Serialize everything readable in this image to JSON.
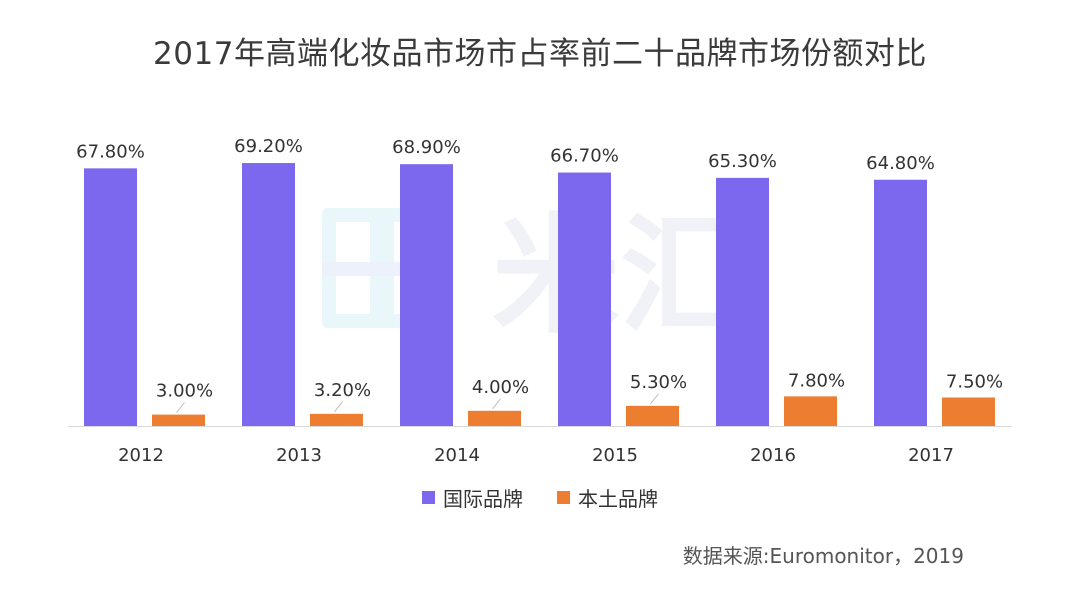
{
  "chart_data": {
    "type": "bar",
    "title": "2017年高端化妆品市场市占率前二十品牌市场份额对比",
    "categories": [
      "2012",
      "2013",
      "2014",
      "2015",
      "2016",
      "2017"
    ],
    "series": [
      {
        "name": "国际品牌",
        "color": "#7B68EE",
        "values": [
          67.8,
          69.2,
          68.9,
          66.7,
          65.3,
          64.8
        ],
        "labels": [
          "67.80%",
          "69.20%",
          "68.90%",
          "66.70%",
          "65.30%",
          "64.80%"
        ]
      },
      {
        "name": "本土品牌",
        "color": "#ED7D31",
        "values": [
          3.0,
          3.2,
          4.0,
          5.3,
          7.8,
          7.5
        ],
        "labels": [
          "3.00%",
          "3.20%",
          "4.00%",
          "5.30%",
          "7.80%",
          "7.50%"
        ]
      }
    ],
    "xlabel": "",
    "ylabel": "",
    "ylim": [
      0,
      70
    ],
    "grid": false,
    "legend": "bottom",
    "source": "数据来源:Euromonitor，2019"
  },
  "watermark": {
    "text": "米汇"
  }
}
